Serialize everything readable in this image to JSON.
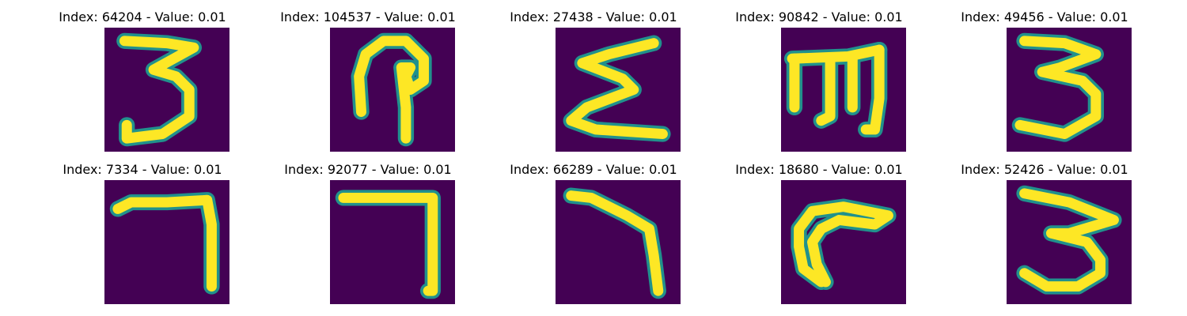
{
  "colors": {
    "background": "#440154",
    "stroke": "#fde725",
    "edge": "#21918c"
  },
  "panels": [
    {
      "index": "64204",
      "value": "0.01",
      "glyph": "three-a"
    },
    {
      "index": "104537",
      "value": "0.01",
      "glyph": "loop"
    },
    {
      "index": "27438",
      "value": "0.01",
      "glyph": "sigma"
    },
    {
      "index": "90842",
      "value": "0.01",
      "glyph": "m-shape"
    },
    {
      "index": "49456",
      "value": "0.01",
      "glyph": "three-b"
    },
    {
      "index": "7334",
      "value": "0.01",
      "glyph": "seven-a"
    },
    {
      "index": "92077",
      "value": "0.01",
      "glyph": "seven-b"
    },
    {
      "index": "66289",
      "value": "0.01",
      "glyph": "seven-c"
    },
    {
      "index": "18680",
      "value": "0.01",
      "glyph": "hook"
    },
    {
      "index": "52426",
      "value": "0.01",
      "glyph": "three-c"
    }
  ]
}
